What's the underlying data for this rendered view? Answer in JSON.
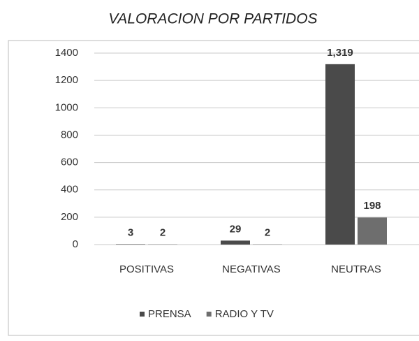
{
  "chart_data": {
    "type": "bar",
    "title": "VALORACION POR PARTIDOS",
    "categories": [
      "POSITIVAS",
      "NEGATIVAS",
      "NEUTRAS"
    ],
    "series": [
      {
        "name": "PRENSA",
        "color": "#4a4a4a",
        "values": [
          3,
          29,
          1319
        ],
        "value_labels": [
          "3",
          "29",
          "1,319"
        ]
      },
      {
        "name": "RADIO Y TV",
        "color": "#6e6e6e",
        "values": [
          2,
          2,
          198
        ]
      }
    ],
    "ylim": [
      0,
      1400
    ],
    "yticks": [
      0,
      200,
      400,
      600,
      800,
      1000,
      1200,
      1400
    ],
    "grid": true,
    "legend": "bottom"
  }
}
